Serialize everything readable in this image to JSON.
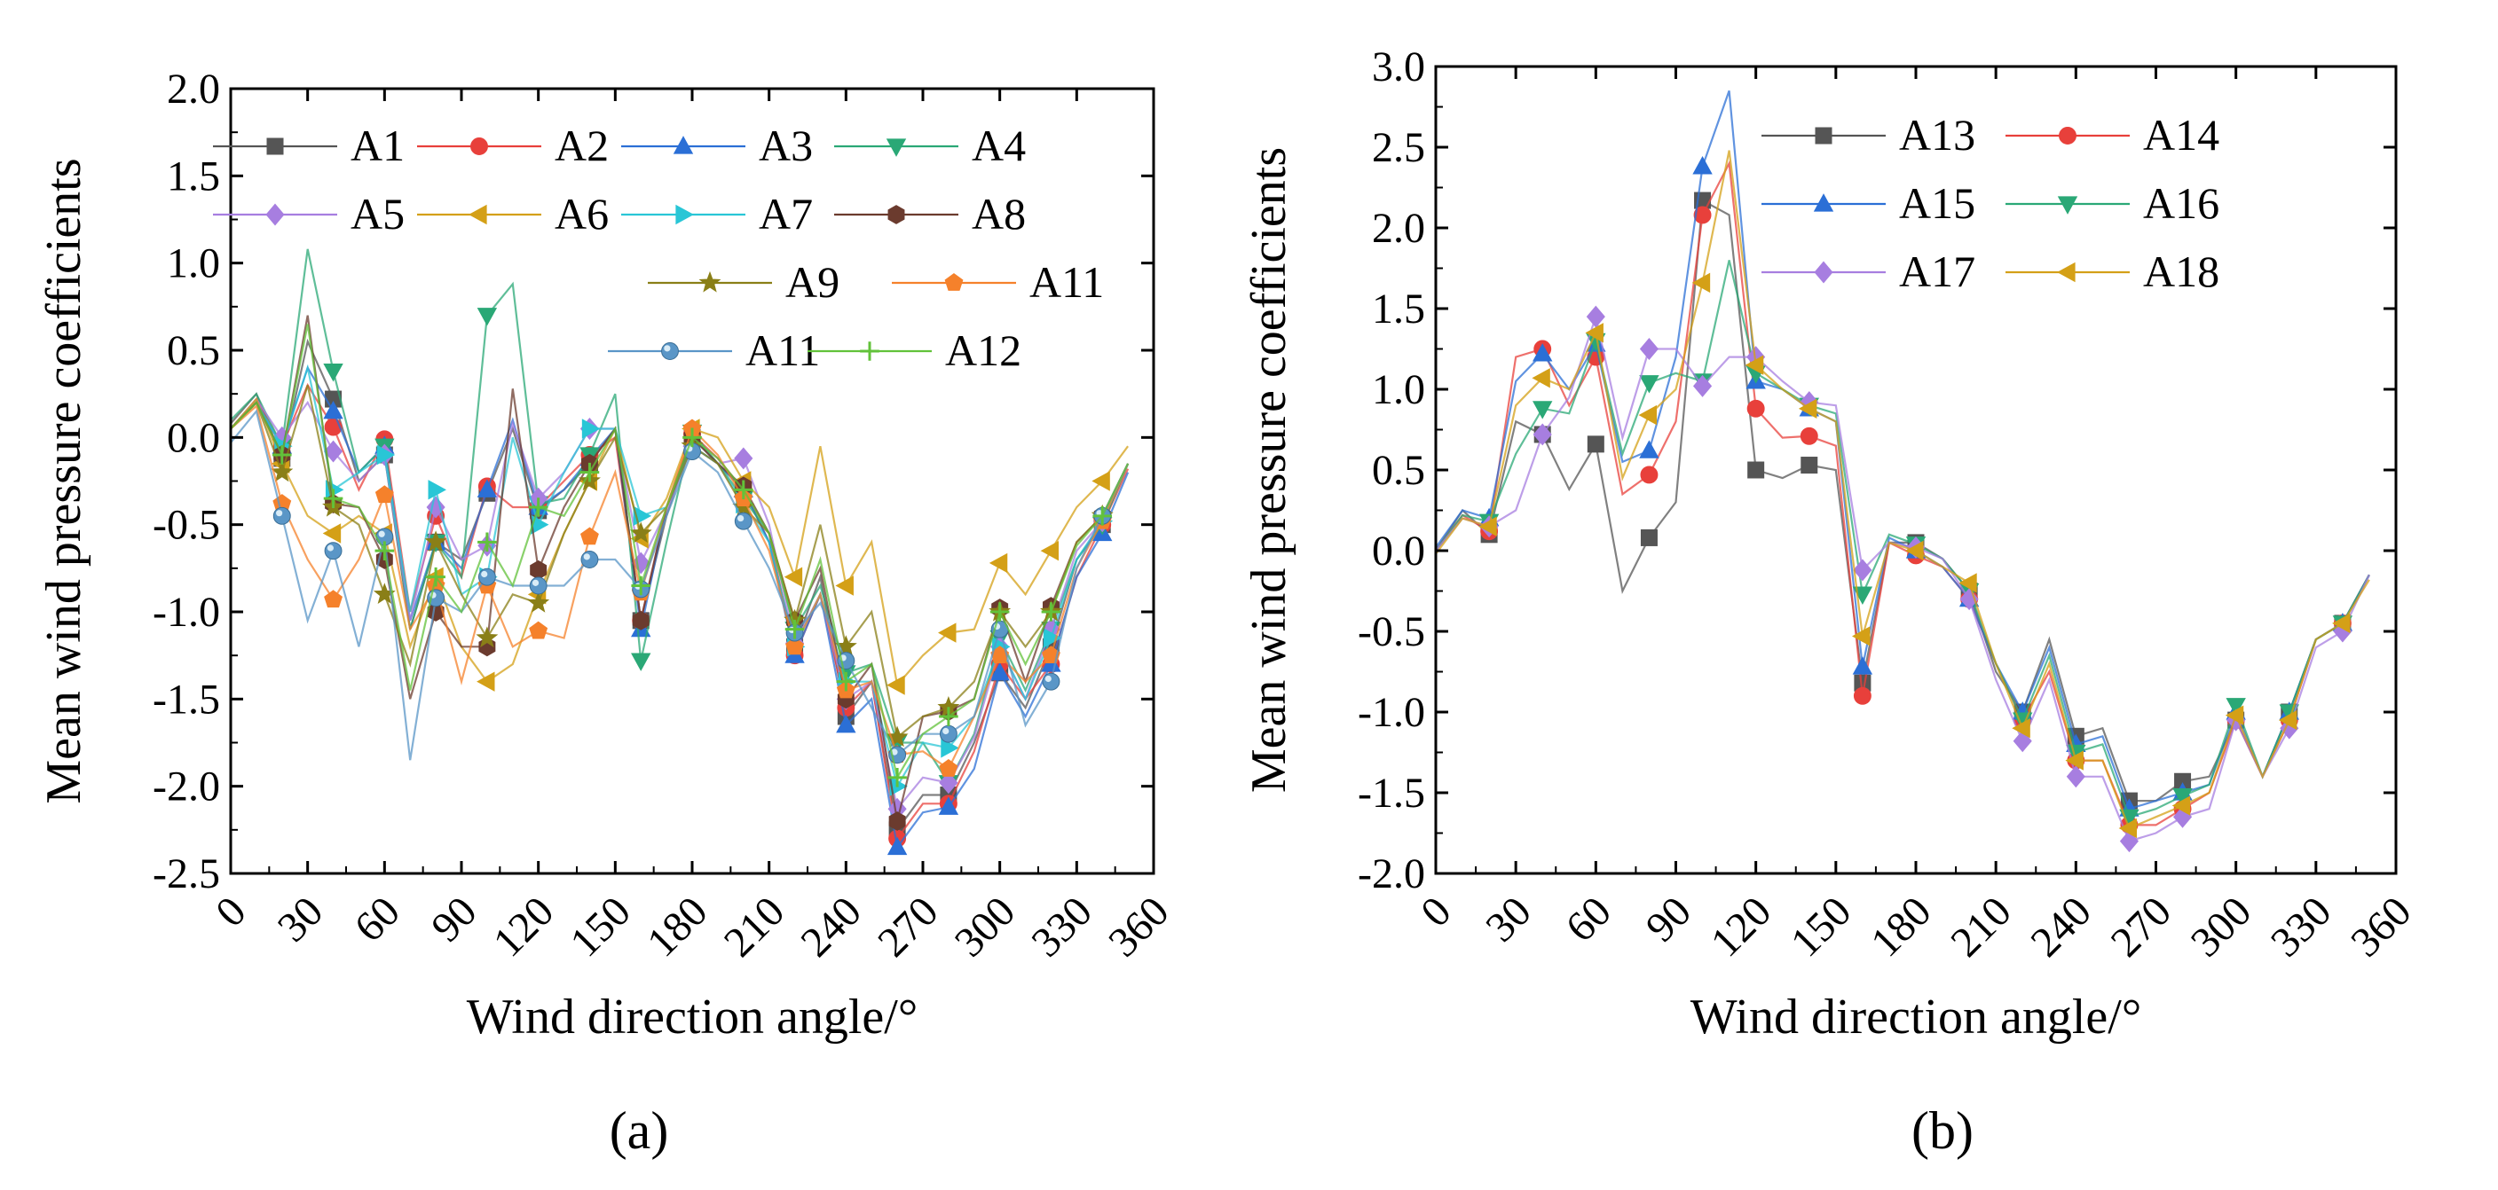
{
  "chart_data": [
    {
      "type": "line",
      "panel_label": "(a)",
      "xlabel": "Wind direction angle/°",
      "ylabel": "Mean wind pressure coefficients",
      "xlim": [
        0,
        360
      ],
      "ylim": [
        -2.5,
        2.0
      ],
      "xticks": [
        0,
        30,
        60,
        90,
        120,
        150,
        180,
        210,
        240,
        270,
        300,
        330,
        360
      ],
      "yticks": [
        "2.0",
        "1.5",
        "1.0",
        "0.5",
        "0.0",
        "-0.5",
        "-1.0",
        "-1.5",
        "-2.0",
        "-2.5"
      ],
      "x": [
        0,
        10,
        20,
        30,
        40,
        50,
        60,
        70,
        80,
        90,
        100,
        110,
        120,
        130,
        140,
        150,
        160,
        170,
        180,
        190,
        200,
        210,
        220,
        230,
        240,
        250,
        260,
        270,
        280,
        290,
        300,
        310,
        320,
        330,
        340,
        350
      ],
      "marker_every": 2,
      "series": [
        {
          "name": "A1",
          "color": "#555555",
          "marker": "square",
          "values": [
            0.08,
            0.25,
            -0.12,
            0.55,
            0.22,
            -0.25,
            -0.1,
            -1.1,
            -0.6,
            -0.7,
            -0.32,
            0.05,
            -0.42,
            -0.3,
            -0.15,
            0.05,
            -1.05,
            -0.45,
            0.0,
            -0.15,
            -0.3,
            -0.6,
            -1.2,
            -0.8,
            -1.6,
            -1.4,
            -2.25,
            -2.05,
            -2.05,
            -1.75,
            -1.35,
            -1.55,
            -1.2,
            -0.7,
            -0.5,
            -0.15
          ]
        },
        {
          "name": "A2",
          "color": "#e8403b",
          "marker": "circle",
          "values": [
            0.05,
            0.22,
            -0.05,
            0.3,
            0.06,
            -0.3,
            -0.01,
            -1.0,
            -0.45,
            -0.8,
            -0.28,
            -0.4,
            -0.4,
            -0.25,
            -0.1,
            0.0,
            -1.05,
            -0.4,
            0.02,
            -0.12,
            -0.3,
            -0.55,
            -1.25,
            -0.9,
            -1.55,
            -1.4,
            -2.3,
            -2.1,
            -2.1,
            -1.8,
            -1.3,
            -1.5,
            -1.3,
            -0.8,
            -0.5,
            -0.18
          ]
        },
        {
          "name": "A3",
          "color": "#2b6fd6",
          "marker": "triangle-up",
          "values": [
            0.05,
            0.2,
            -0.05,
            0.4,
            0.15,
            -0.2,
            -0.05,
            -1.05,
            -0.6,
            -0.75,
            -0.3,
            0.1,
            -0.4,
            -0.3,
            -0.12,
            0.05,
            -1.1,
            -0.4,
            -0.05,
            -0.15,
            -0.3,
            -0.6,
            -1.25,
            -0.9,
            -1.65,
            -1.5,
            -2.35,
            -2.15,
            -2.12,
            -1.9,
            -1.35,
            -1.6,
            -1.3,
            -0.8,
            -0.55,
            -0.2
          ]
        },
        {
          "name": "A4",
          "color": "#2aa876",
          "marker": "triangle-down",
          "values": [
            0.1,
            0.25,
            -0.05,
            1.08,
            0.38,
            -0.2,
            -0.05,
            -1.1,
            -0.6,
            -0.8,
            0.7,
            0.88,
            -0.38,
            -0.35,
            -0.1,
            0.25,
            -1.28,
            -0.6,
            0.03,
            -0.15,
            -0.35,
            -0.55,
            -1.1,
            -0.85,
            -1.35,
            -1.3,
            -1.75,
            -1.75,
            -1.98,
            -1.7,
            -1.15,
            -1.45,
            -1.1,
            -0.7,
            -0.5,
            -0.15
          ]
        },
        {
          "name": "A5",
          "color": "#a77ee0",
          "marker": "diamond",
          "values": [
            0.05,
            0.22,
            0.0,
            0.2,
            -0.08,
            -0.25,
            -0.1,
            -1.05,
            -0.4,
            -0.7,
            -0.62,
            0.08,
            -0.35,
            -0.2,
            0.05,
            0.05,
            -0.72,
            -0.42,
            -0.05,
            -0.15,
            -0.12,
            -0.5,
            -1.18,
            -0.9,
            -1.5,
            -1.4,
            -2.13,
            -1.95,
            -1.98,
            -1.72,
            -1.2,
            -1.5,
            -1.1,
            -0.65,
            -0.48,
            -0.15
          ]
        },
        {
          "name": "A6",
          "color": "#d4a017",
          "marker": "triangle-left",
          "values": [
            0.05,
            0.22,
            -0.15,
            -0.45,
            -0.55,
            -0.45,
            -0.55,
            -1.2,
            -0.8,
            -1.2,
            -1.4,
            -1.3,
            -0.9,
            -0.55,
            -0.25,
            0.05,
            -0.58,
            -0.35,
            0.05,
            0.0,
            -0.25,
            -0.4,
            -0.8,
            -0.05,
            -0.85,
            -0.6,
            -1.42,
            -1.25,
            -1.12,
            -1.1,
            -0.72,
            -0.9,
            -0.65,
            -0.4,
            -0.25,
            -0.05
          ]
        },
        {
          "name": "A7",
          "color": "#29c6d6",
          "marker": "triangle-right",
          "values": [
            0.05,
            0.2,
            -0.05,
            0.4,
            -0.3,
            -0.2,
            -0.1,
            -1.0,
            -0.3,
            -0.9,
            -0.8,
            0.0,
            -0.5,
            -0.2,
            0.05,
            0.05,
            -0.45,
            -0.4,
            -0.05,
            -0.15,
            -0.38,
            -0.6,
            -1.2,
            -0.9,
            -1.4,
            -1.4,
            -2.0,
            -1.75,
            -1.78,
            -1.6,
            -1.2,
            -1.5,
            -1.15,
            -0.7,
            -0.48,
            -0.15
          ]
        },
        {
          "name": "A8",
          "color": "#6b3b2e",
          "marker": "hexagon",
          "values": [
            0.05,
            0.2,
            -0.1,
            0.7,
            -0.38,
            -0.4,
            -0.7,
            -1.5,
            -1.0,
            -1.2,
            -1.2,
            0.28,
            -0.76,
            -0.4,
            -0.15,
            0.05,
            -1.05,
            -0.4,
            0.0,
            -0.15,
            -0.28,
            -0.55,
            -1.05,
            -0.75,
            -1.5,
            -1.3,
            -2.2,
            -1.6,
            -1.57,
            -1.5,
            -0.98,
            -1.4,
            -0.97,
            -0.6,
            -0.45,
            -0.15
          ]
        },
        {
          "name": "A9",
          "color": "#8a7f17",
          "marker": "star",
          "values": [
            0.05,
            0.2,
            -0.2,
            0.3,
            -0.4,
            -0.5,
            -0.9,
            -1.3,
            -0.6,
            -0.9,
            -1.15,
            -0.9,
            -0.95,
            -0.55,
            -0.25,
            0.0,
            -0.55,
            -0.4,
            -0.05,
            -0.15,
            -0.4,
            -0.55,
            -1.05,
            -0.5,
            -1.2,
            -1.0,
            -1.72,
            -1.6,
            -1.55,
            -1.4,
            -1.0,
            -1.2,
            -1.0,
            -0.6,
            -0.45,
            -0.15
          ]
        },
        {
          "name": "A11",
          "color": "#f5812b",
          "marker": "pentagon",
          "values": [
            0.05,
            0.18,
            -0.38,
            -0.7,
            -0.93,
            -0.7,
            -0.33,
            -1.1,
            -0.85,
            -1.4,
            -0.85,
            -1.2,
            -1.11,
            -1.15,
            -0.57,
            -0.2,
            -0.89,
            -0.4,
            0.05,
            -0.1,
            -0.35,
            -0.65,
            -1.2,
            -0.9,
            -1.45,
            -1.4,
            -1.82,
            -1.8,
            -1.9,
            -1.6,
            -1.25,
            -1.4,
            -1.25,
            -0.75,
            -0.48,
            -0.15
          ]
        },
        {
          "name": "A11",
          "color": "#5a96c7",
          "marker": "sphere",
          "values": [
            -0.03,
            0.15,
            -0.45,
            -1.05,
            -0.65,
            -1.2,
            -0.57,
            -1.85,
            -0.92,
            -1.0,
            -0.8,
            -0.85,
            -0.85,
            -0.85,
            -0.7,
            -0.7,
            -0.87,
            -0.45,
            -0.08,
            -0.2,
            -0.48,
            -0.75,
            -1.12,
            -0.95,
            -1.28,
            -1.55,
            -1.82,
            -1.7,
            -1.7,
            -1.6,
            -1.1,
            -1.65,
            -1.4,
            -0.75,
            -0.45,
            -0.15
          ]
        },
        {
          "name": "A12",
          "color": "#62c23a",
          "marker": "plus",
          "values": [
            0.05,
            0.2,
            -0.1,
            0.65,
            -0.35,
            -0.4,
            -0.65,
            -1.45,
            -0.8,
            -1.0,
            -0.6,
            -0.85,
            -0.4,
            -0.45,
            -0.2,
            0.05,
            -0.85,
            -0.4,
            0.0,
            -0.12,
            -0.3,
            -0.55,
            -1.1,
            -0.7,
            -1.4,
            -1.3,
            -1.95,
            -1.7,
            -1.6,
            -1.5,
            -1.0,
            -1.3,
            -1.0,
            -0.62,
            -0.45,
            -0.15
          ]
        }
      ]
    },
    {
      "type": "line",
      "panel_label": "(b)",
      "xlabel": "Wind direction angle/°",
      "ylabel": "Mean wind pressure coefficients",
      "xlim": [
        0,
        360
      ],
      "ylim": [
        -2.0,
        3.0
      ],
      "xticks": [
        0,
        30,
        60,
        90,
        120,
        150,
        180,
        210,
        240,
        270,
        300,
        330,
        360
      ],
      "yticks": [
        "3.0",
        "2.5",
        "2.0",
        "1.5",
        "1.0",
        "0.5",
        "0.0",
        "-0.5",
        "-1.0",
        "-1.5",
        "-2.0"
      ],
      "x": [
        0,
        10,
        20,
        30,
        40,
        50,
        60,
        70,
        80,
        90,
        100,
        110,
        120,
        130,
        140,
        150,
        160,
        170,
        180,
        190,
        200,
        210,
        220,
        230,
        240,
        250,
        260,
        270,
        280,
        290,
        300,
        310,
        320,
        330,
        340,
        350
      ],
      "marker_every": 2,
      "series": [
        {
          "name": "A13",
          "color": "#555555",
          "marker": "square",
          "values": [
            0.0,
            0.25,
            0.1,
            0.8,
            0.72,
            0.38,
            0.66,
            -0.25,
            0.08,
            0.3,
            2.17,
            2.08,
            0.5,
            0.45,
            0.53,
            0.5,
            -0.82,
            0.05,
            0.05,
            -0.05,
            -0.25,
            -0.75,
            -1.0,
            -0.55,
            -1.15,
            -1.1,
            -1.55,
            -1.55,
            -1.43,
            -1.4,
            -1.05,
            -1.4,
            -1.0,
            -0.55,
            -0.45,
            -0.15
          ]
        },
        {
          "name": "A14",
          "color": "#e8403b",
          "marker": "circle",
          "values": [
            0.0,
            0.22,
            0.12,
            1.2,
            1.25,
            0.9,
            1.2,
            0.35,
            0.47,
            0.8,
            2.08,
            2.4,
            0.88,
            0.7,
            0.71,
            0.65,
            -0.9,
            0.05,
            -0.03,
            -0.1,
            -0.3,
            -0.7,
            -1.05,
            -0.75,
            -1.3,
            -1.3,
            -1.7,
            -1.7,
            -1.6,
            -1.5,
            -1.05,
            -1.4,
            -1.05,
            -0.55,
            -0.45,
            -0.15
          ]
        },
        {
          "name": "A15",
          "color": "#2b6fd6",
          "marker": "triangle-up",
          "values": [
            0.02,
            0.25,
            0.2,
            1.05,
            1.22,
            1.0,
            1.28,
            0.55,
            0.62,
            1.2,
            2.38,
            2.85,
            1.05,
            1.0,
            0.88,
            0.8,
            -0.72,
            0.08,
            0.0,
            -0.1,
            -0.3,
            -0.7,
            -1.0,
            -0.6,
            -1.2,
            -1.15,
            -1.6,
            -1.55,
            -1.5,
            -1.45,
            -1.0,
            -1.4,
            -1.0,
            -0.55,
            -0.45,
            -0.15
          ]
        },
        {
          "name": "A16",
          "color": "#2aa876",
          "marker": "triangle-down",
          "values": [
            0.0,
            0.22,
            0.18,
            0.6,
            0.88,
            0.85,
            1.3,
            0.6,
            1.04,
            1.1,
            1.05,
            1.8,
            1.1,
            1.0,
            0.9,
            0.85,
            -0.27,
            0.1,
            0.04,
            -0.05,
            -0.25,
            -0.7,
            -1.05,
            -0.65,
            -1.25,
            -1.2,
            -1.65,
            -1.6,
            -1.52,
            -1.45,
            -0.96,
            -1.4,
            -1.0,
            -0.55,
            -0.45,
            -0.15
          ]
        },
        {
          "name": "A17",
          "color": "#a77ee0",
          "marker": "diamond",
          "values": [
            0.0,
            0.2,
            0.15,
            0.25,
            0.72,
            0.95,
            1.45,
            0.7,
            1.25,
            1.25,
            1.02,
            1.2,
            1.2,
            1.05,
            0.92,
            0.9,
            -0.12,
            0.05,
            0.02,
            -0.05,
            -0.3,
            -0.8,
            -1.18,
            -0.8,
            -1.4,
            -1.4,
            -1.8,
            -1.75,
            -1.65,
            -1.6,
            -1.05,
            -1.4,
            -1.1,
            -0.6,
            -0.5,
            -0.15
          ]
        },
        {
          "name": "A18",
          "color": "#d4a017",
          "marker": "triangle-left",
          "values": [
            -0.02,
            0.2,
            0.15,
            0.9,
            1.07,
            1.0,
            1.35,
            0.45,
            0.84,
            1.0,
            1.66,
            2.48,
            1.15,
            1.0,
            0.88,
            0.8,
            -0.53,
            0.05,
            0.0,
            -0.1,
            -0.2,
            -0.7,
            -1.1,
            -0.7,
            -1.3,
            -1.3,
            -1.72,
            -1.65,
            -1.58,
            -1.5,
            -1.02,
            -1.4,
            -1.05,
            -0.55,
            -0.45,
            -0.18
          ]
        }
      ]
    }
  ]
}
